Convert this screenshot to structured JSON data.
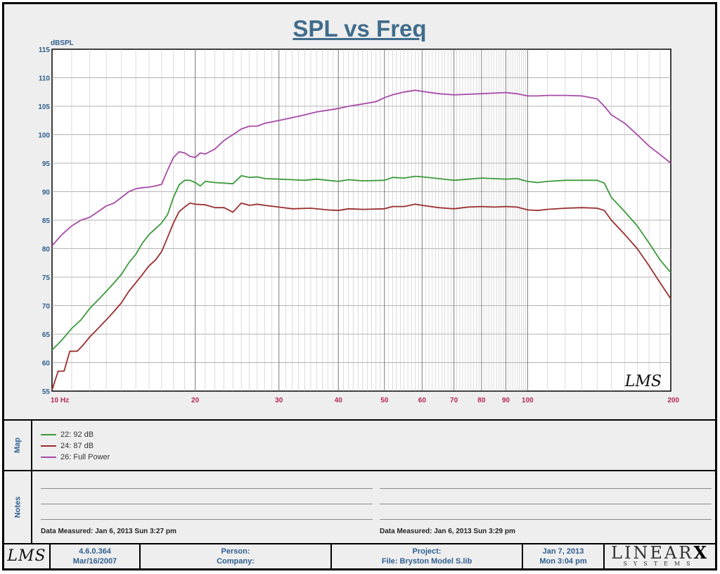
{
  "chart_data": {
    "type": "line",
    "title": "SPL vs Freq",
    "ylabel": "dBSPL",
    "xlabel": "",
    "x_scale": "log",
    "xlim": [
      10,
      200
    ],
    "ylim": [
      55,
      115
    ],
    "x_ticks": [
      {
        "value": 10,
        "label": "10  Hz"
      },
      {
        "value": 20,
        "label": "20"
      },
      {
        "value": 30,
        "label": "30"
      },
      {
        "value": 40,
        "label": "40"
      },
      {
        "value": 50,
        "label": "50"
      },
      {
        "value": 60,
        "label": "60"
      },
      {
        "value": 70,
        "label": "70"
      },
      {
        "value": 80,
        "label": "80"
      },
      {
        "value": 90,
        "label": "90"
      },
      {
        "value": 100,
        "label": "100"
      },
      {
        "value": 200,
        "label": "200"
      }
    ],
    "y_ticks": [
      55,
      60,
      65,
      70,
      75,
      80,
      85,
      90,
      95,
      100,
      105,
      110,
      115
    ],
    "grid": true,
    "legend_position": "bottom-left",
    "watermark": "LMS",
    "series": [
      {
        "name": "22: 92 dB",
        "color": "#3c9a3c",
        "points": [
          [
            10,
            62.2
          ],
          [
            10.5,
            64
          ],
          [
            11,
            66
          ],
          [
            11.5,
            67.5
          ],
          [
            12,
            69.5
          ],
          [
            12.5,
            71
          ],
          [
            13,
            72.5
          ],
          [
            13.5,
            74
          ],
          [
            14,
            75.5
          ],
          [
            14.5,
            77.5
          ],
          [
            15,
            79
          ],
          [
            15.5,
            81
          ],
          [
            16,
            82.5
          ],
          [
            16.5,
            83.5
          ],
          [
            17,
            84.5
          ],
          [
            17.5,
            86
          ],
          [
            18,
            89
          ],
          [
            18.5,
            91.2
          ],
          [
            19,
            92
          ],
          [
            19.5,
            92
          ],
          [
            20,
            91.6
          ],
          [
            20.5,
            91
          ],
          [
            21,
            91.8
          ],
          [
            22,
            91.6
          ],
          [
            23,
            91.5
          ],
          [
            24,
            91.4
          ],
          [
            25,
            92.8
          ],
          [
            26,
            92.5
          ],
          [
            27,
            92.6
          ],
          [
            28,
            92.3
          ],
          [
            30,
            92.2
          ],
          [
            32,
            92.1
          ],
          [
            34,
            92
          ],
          [
            36,
            92.2
          ],
          [
            38,
            92
          ],
          [
            40,
            91.8
          ],
          [
            42,
            92.1
          ],
          [
            45,
            91.9
          ],
          [
            50,
            92
          ],
          [
            52,
            92.5
          ],
          [
            55,
            92.4
          ],
          [
            58,
            92.7
          ],
          [
            60,
            92.6
          ],
          [
            65,
            92.3
          ],
          [
            70,
            92
          ],
          [
            75,
            92.2
          ],
          [
            80,
            92.4
          ],
          [
            85,
            92.3
          ],
          [
            90,
            92.2
          ],
          [
            95,
            92.3
          ],
          [
            100,
            91.8
          ],
          [
            105,
            91.6
          ],
          [
            110,
            91.8
          ],
          [
            120,
            92
          ],
          [
            130,
            92
          ],
          [
            140,
            92
          ],
          [
            145,
            91.5
          ],
          [
            150,
            89
          ],
          [
            160,
            86.5
          ],
          [
            170,
            84
          ],
          [
            180,
            81
          ],
          [
            190,
            78
          ],
          [
            200,
            75.8
          ]
        ]
      },
      {
        "name": "24: 87 dB",
        "color": "#9b2e2e",
        "points": [
          [
            10,
            55.2
          ],
          [
            10.3,
            58.5
          ],
          [
            10.6,
            58.5
          ],
          [
            10.9,
            62
          ],
          [
            11.3,
            62
          ],
          [
            11.6,
            63
          ],
          [
            12,
            64.5
          ],
          [
            12.5,
            66
          ],
          [
            13,
            67.5
          ],
          [
            13.5,
            69
          ],
          [
            14,
            70.5
          ],
          [
            14.5,
            72.5
          ],
          [
            15,
            74
          ],
          [
            15.5,
            75.5
          ],
          [
            16,
            77
          ],
          [
            16.5,
            78
          ],
          [
            17,
            79.5
          ],
          [
            17.5,
            82
          ],
          [
            18,
            84.5
          ],
          [
            18.5,
            86.5
          ],
          [
            19,
            87.3
          ],
          [
            19.5,
            88
          ],
          [
            20,
            87.8
          ],
          [
            21,
            87.7
          ],
          [
            22,
            87.2
          ],
          [
            23,
            87.2
          ],
          [
            24,
            86.4
          ],
          [
            25,
            88
          ],
          [
            26,
            87.6
          ],
          [
            27,
            87.8
          ],
          [
            28,
            87.6
          ],
          [
            30,
            87.3
          ],
          [
            32,
            87
          ],
          [
            35,
            87.1
          ],
          [
            38,
            86.8
          ],
          [
            40,
            86.7
          ],
          [
            42,
            87
          ],
          [
            45,
            86.9
          ],
          [
            50,
            87
          ],
          [
            52,
            87.4
          ],
          [
            55,
            87.4
          ],
          [
            58,
            87.8
          ],
          [
            60,
            87.6
          ],
          [
            65,
            87.2
          ],
          [
            70,
            87
          ],
          [
            75,
            87.3
          ],
          [
            80,
            87.4
          ],
          [
            85,
            87.3
          ],
          [
            90,
            87.4
          ],
          [
            95,
            87.3
          ],
          [
            100,
            86.8
          ],
          [
            105,
            86.7
          ],
          [
            110,
            86.9
          ],
          [
            120,
            87.1
          ],
          [
            130,
            87.2
          ],
          [
            140,
            87.1
          ],
          [
            145,
            86.7
          ],
          [
            150,
            85
          ],
          [
            160,
            82.5
          ],
          [
            170,
            80
          ],
          [
            180,
            77
          ],
          [
            190,
            74
          ],
          [
            200,
            71.2
          ]
        ]
      },
      {
        "name": "26: Full Power",
        "color": "#a74aa7",
        "points": [
          [
            10,
            80.5
          ],
          [
            10.5,
            82.5
          ],
          [
            11,
            84
          ],
          [
            11.5,
            85
          ],
          [
            12,
            85.5
          ],
          [
            12.5,
            86.5
          ],
          [
            13,
            87.5
          ],
          [
            13.5,
            88
          ],
          [
            14,
            89
          ],
          [
            14.5,
            90
          ],
          [
            15,
            90.5
          ],
          [
            15.5,
            90.7
          ],
          [
            16,
            90.8
          ],
          [
            16.5,
            91
          ],
          [
            17,
            91.3
          ],
          [
            17.5,
            93.8
          ],
          [
            18,
            96
          ],
          [
            18.5,
            97
          ],
          [
            19,
            96.8
          ],
          [
            19.5,
            96.2
          ],
          [
            20,
            96
          ],
          [
            20.5,
            96.8
          ],
          [
            21,
            96.6
          ],
          [
            22,
            97.5
          ],
          [
            23,
            99
          ],
          [
            24,
            100
          ],
          [
            25,
            101
          ],
          [
            26,
            101.5
          ],
          [
            27,
            101.5
          ],
          [
            28,
            102
          ],
          [
            30,
            102.5
          ],
          [
            32,
            103
          ],
          [
            34,
            103.5
          ],
          [
            36,
            104
          ],
          [
            38,
            104.3
          ],
          [
            40,
            104.6
          ],
          [
            42,
            105
          ],
          [
            45,
            105.4
          ],
          [
            48,
            105.8
          ],
          [
            50,
            106.5
          ],
          [
            52,
            107
          ],
          [
            55,
            107.5
          ],
          [
            58,
            107.8
          ],
          [
            60,
            107.6
          ],
          [
            65,
            107.2
          ],
          [
            70,
            107
          ],
          [
            75,
            107.1
          ],
          [
            80,
            107.2
          ],
          [
            85,
            107.3
          ],
          [
            90,
            107.4
          ],
          [
            95,
            107.2
          ],
          [
            100,
            106.8
          ],
          [
            105,
            106.8
          ],
          [
            110,
            106.9
          ],
          [
            120,
            106.9
          ],
          [
            130,
            106.8
          ],
          [
            140,
            106.3
          ],
          [
            145,
            105
          ],
          [
            150,
            103.5
          ],
          [
            160,
            102
          ],
          [
            170,
            100
          ],
          [
            180,
            98
          ],
          [
            190,
            96.5
          ],
          [
            200,
            95
          ]
        ]
      }
    ]
  },
  "map": {
    "label": "Map"
  },
  "notes": {
    "label": "Notes",
    "left_measured": "Data Measured:  Jan  6, 2013  Sun  3:27 pm",
    "right_measured": "Data Measured:  Jan  6, 2013  Sun  3:29 pm"
  },
  "footer": {
    "logo": "LMS",
    "version": "4.6.0.364",
    "version_date": "Mar/16/2007",
    "person": "Person:",
    "company": "Company:",
    "project": "Project:",
    "file": "File: Bryston Model S.lib",
    "date": "Jan  7, 2013",
    "time": "Mon  3:04 pm",
    "brand_top": "LINEAR",
    "brand_x": "X",
    "brand_bottom": "SYSTEMS"
  }
}
